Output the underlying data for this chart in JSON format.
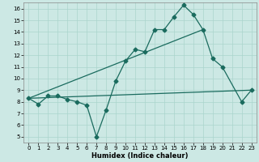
{
  "xlabel": "Humidex (Indice chaleur)",
  "xlim": [
    -0.5,
    23.5
  ],
  "ylim": [
    4.5,
    16.5
  ],
  "xticks": [
    0,
    1,
    2,
    3,
    4,
    5,
    6,
    7,
    8,
    9,
    10,
    11,
    12,
    13,
    14,
    15,
    16,
    17,
    18,
    19,
    20,
    21,
    22,
    23
  ],
  "yticks": [
    5,
    6,
    7,
    8,
    9,
    10,
    11,
    12,
    13,
    14,
    15,
    16
  ],
  "bg_color": "#cce8e4",
  "line_color": "#1a6b5e",
  "grid_color": "#aad4cc",
  "line1_x": [
    0,
    1,
    2,
    3,
    4,
    5,
    6,
    7,
    8,
    9,
    10,
    11,
    12,
    13,
    14,
    15,
    16,
    17,
    18,
    19,
    20,
    22,
    23
  ],
  "line1_y": [
    8.3,
    7.8,
    8.5,
    8.5,
    8.2,
    8.0,
    7.7,
    5.0,
    7.3,
    9.8,
    11.5,
    12.5,
    12.3,
    14.2,
    14.2,
    15.3,
    16.3,
    15.5,
    14.2,
    11.7,
    11.0,
    8.0,
    9.0
  ],
  "line2_x": [
    0,
    18
  ],
  "line2_y": [
    8.3,
    14.2
  ],
  "line3_x": [
    0,
    23
  ],
  "line3_y": [
    8.3,
    9.0
  ],
  "marker_size": 2.5,
  "linewidth": 0.9
}
